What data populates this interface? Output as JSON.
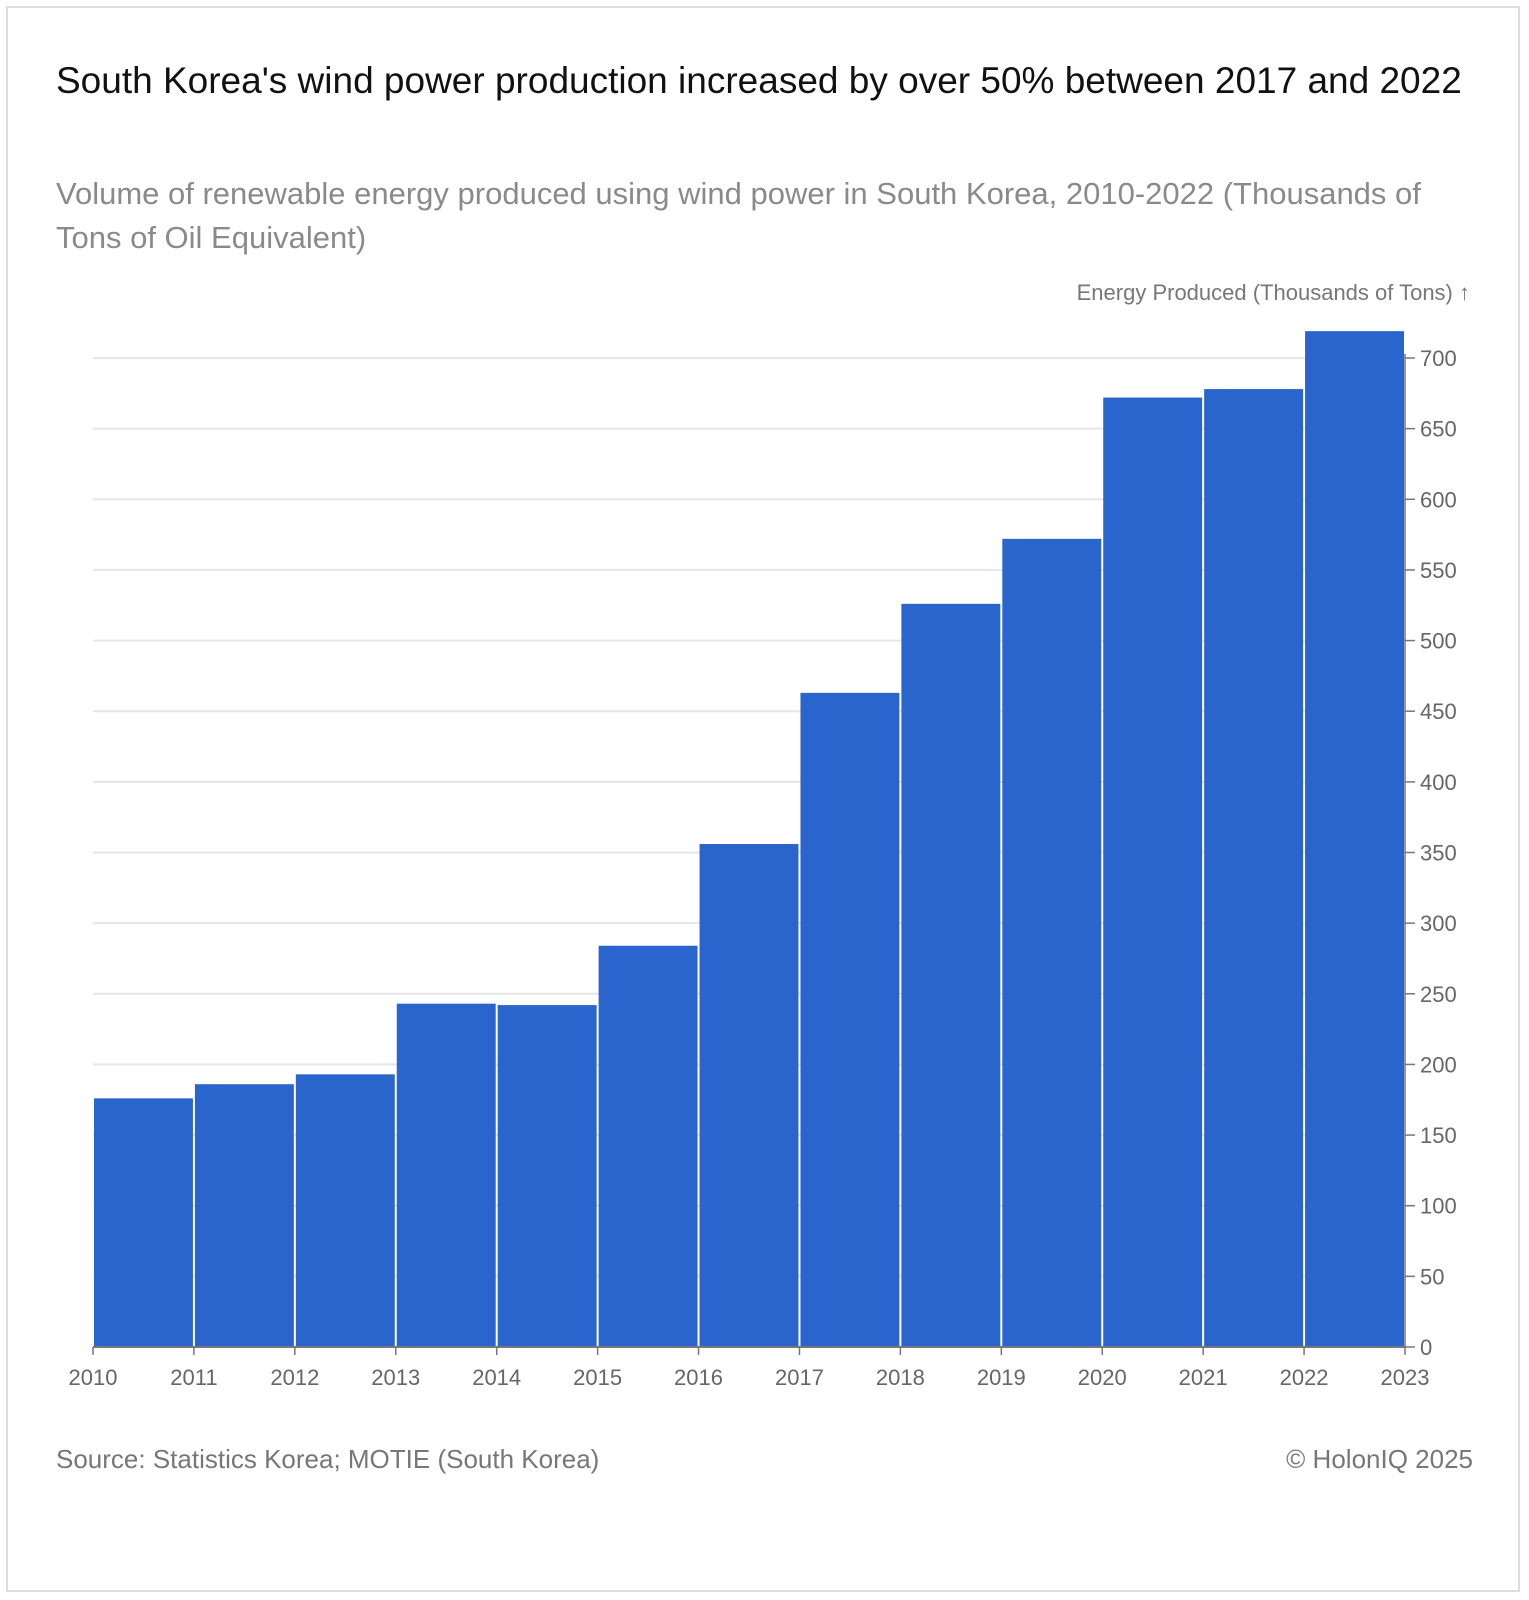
{
  "header": {
    "title": "South Korea's wind power production increased by over 50% between 2017 and 2022",
    "subtitle": "Volume of renewable energy produced using wind power in South Korea, 2010-2022 (Thousands of Tons of Oil Equivalent)"
  },
  "footer": {
    "source": "Source: Statistics Korea; MOTIE (South Korea)",
    "copyright": "© HolonIQ 2025"
  },
  "colors": {
    "bar": "#2965cc",
    "grid": "#e6e6e6",
    "axis": "#777777",
    "tick_text": "#666666"
  },
  "chart_data": {
    "type": "bar",
    "title": "South Korea's wind power production increased by over 50% between 2017 and 2022",
    "subtitle": "Volume of renewable energy produced using wind power in South Korea, 2010-2022 (Thousands of Tons of Oil Equivalent)",
    "ylabel": "Energy Produced (Thousands of Tons) ↑",
    "xlabel": "",
    "x_ticks": [
      "2010",
      "2011",
      "2012",
      "2013",
      "2014",
      "2015",
      "2016",
      "2017",
      "2018",
      "2019",
      "2020",
      "2021",
      "2022",
      "2023"
    ],
    "y_ticks": [
      "0",
      "50",
      "100",
      "150",
      "200",
      "250",
      "300",
      "350",
      "400",
      "450",
      "500",
      "550",
      "600",
      "650",
      "700"
    ],
    "categories": [
      2010,
      2011,
      2012,
      2013,
      2014,
      2015,
      2016,
      2017,
      2018,
      2019,
      2020,
      2021,
      2022
    ],
    "values": [
      176,
      186,
      193,
      243,
      242,
      284,
      356,
      463,
      526,
      572,
      672,
      678,
      719
    ],
    "ylim": [
      0,
      730
    ],
    "xlim": [
      2010,
      2023
    ],
    "grid": true,
    "y_axis_side": "right"
  }
}
